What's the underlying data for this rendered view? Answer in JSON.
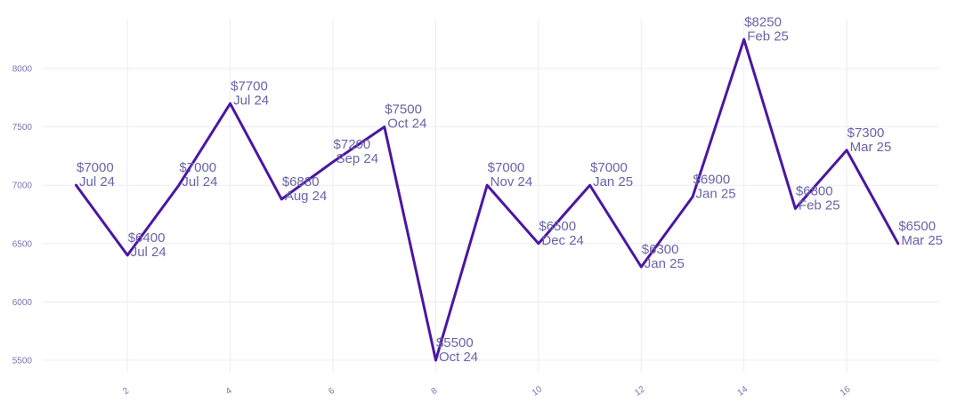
{
  "chart_data": {
    "type": "line",
    "title": "",
    "xlabel": "",
    "ylabel": "",
    "xlim": [
      0.35,
      17.8
    ],
    "ylim": [
      5400,
      8420
    ],
    "x_ticks": [
      2,
      4,
      6,
      8,
      10,
      12,
      14,
      16
    ],
    "y_ticks": [
      5500,
      6000,
      6500,
      7000,
      7500,
      8000
    ],
    "grid": true,
    "line_color": "#4b17a0",
    "label_color": "#6a64a8",
    "tick_color": "#7b74b0",
    "points": [
      {
        "x": 1,
        "y": 7000,
        "price": "$7000",
        "date": "Jul 24"
      },
      {
        "x": 2,
        "y": 6400,
        "price": "$6400",
        "date": "Jul 24"
      },
      {
        "x": 3,
        "y": 7000,
        "price": "$7000",
        "date": "Jul 24"
      },
      {
        "x": 4,
        "y": 7700,
        "price": "$7700",
        "date": "Jul 24"
      },
      {
        "x": 5,
        "y": 6880,
        "price": "$6880",
        "date": "Aug 24"
      },
      {
        "x": 6,
        "y": 7200,
        "price": "$7200",
        "date": "Sep 24"
      },
      {
        "x": 7,
        "y": 7500,
        "price": "$7500",
        "date": "Oct 24"
      },
      {
        "x": 8,
        "y": 5500,
        "price": "$5500",
        "date": "Oct 24"
      },
      {
        "x": 9,
        "y": 7000,
        "price": "$7000",
        "date": "Nov 24"
      },
      {
        "x": 10,
        "y": 6500,
        "price": "$6500",
        "date": "Dec 24"
      },
      {
        "x": 11,
        "y": 7000,
        "price": "$7000",
        "date": "Jan 25"
      },
      {
        "x": 12,
        "y": 6300,
        "price": "$6300",
        "date": "Jan 25"
      },
      {
        "x": 13,
        "y": 6900,
        "price": "$6900",
        "date": "Jan 25"
      },
      {
        "x": 14,
        "y": 8250,
        "price": "$8250",
        "date": "Feb 25"
      },
      {
        "x": 15,
        "y": 6800,
        "price": "$6800",
        "date": "Feb 25"
      },
      {
        "x": 16,
        "y": 7300,
        "price": "$7300",
        "date": "Mar 25"
      },
      {
        "x": 17,
        "y": 6500,
        "price": "$6500",
        "date": "Mar 25"
      }
    ]
  }
}
